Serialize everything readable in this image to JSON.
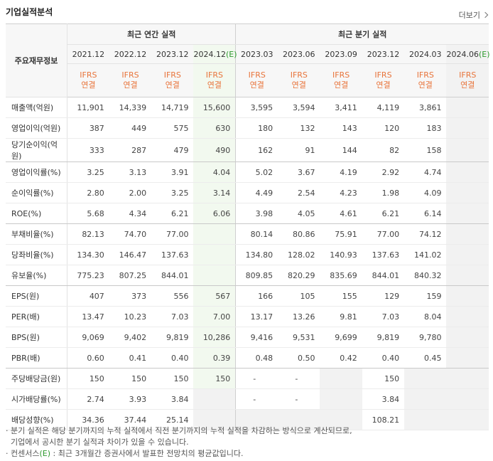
{
  "title": "기업실적분석",
  "more_label": "더보기",
  "header": {
    "row_label": "주요재무정보",
    "annual_group": "최근 연간 실적",
    "quarter_group": "최근 분기 실적",
    "annual_periods": [
      "2021.12",
      "2022.12",
      "2023.12",
      "2024.12"
    ],
    "annual_estimate_suffix": "(E)",
    "quarter_periods": [
      "2023.03",
      "2023.06",
      "2023.09",
      "2023.12",
      "2024.03",
      "2024.06"
    ],
    "quarter_estimate_suffix": "(E)",
    "ifrs": "IFRS",
    "consolidated": "연결"
  },
  "rows": [
    {
      "label": "매출액(억원)",
      "values": [
        "11,901",
        "14,339",
        "14,719",
        "15,600",
        "3,595",
        "3,594",
        "3,411",
        "4,119",
        "3,861",
        ""
      ]
    },
    {
      "label": "영업이익(억원)",
      "values": [
        "387",
        "449",
        "575",
        "630",
        "180",
        "132",
        "143",
        "120",
        "183",
        ""
      ]
    },
    {
      "label": "당기순이익(억원)",
      "values": [
        "333",
        "287",
        "479",
        "490",
        "162",
        "91",
        "144",
        "82",
        "158",
        ""
      ]
    },
    {
      "label": "영업이익률(%)",
      "values": [
        "3.25",
        "3.13",
        "3.91",
        "4.04",
        "5.02",
        "3.67",
        "4.19",
        "2.92",
        "4.74",
        ""
      ]
    },
    {
      "label": "순이익률(%)",
      "values": [
        "2.80",
        "2.00",
        "3.25",
        "3.14",
        "4.49",
        "2.54",
        "4.23",
        "1.98",
        "4.09",
        ""
      ]
    },
    {
      "label": "ROE(%)",
      "values": [
        "5.68",
        "4.34",
        "6.21",
        "6.06",
        "3.98",
        "4.05",
        "4.61",
        "6.21",
        "6.14",
        ""
      ]
    },
    {
      "label": "부채비율(%)",
      "values": [
        "82.13",
        "74.70",
        "77.00",
        "",
        "80.14",
        "80.86",
        "75.91",
        "77.00",
        "74.12",
        ""
      ]
    },
    {
      "label": "당좌비율(%)",
      "values": [
        "134.30",
        "146.47",
        "137.63",
        "",
        "134.80",
        "128.02",
        "140.93",
        "137.63",
        "141.02",
        ""
      ]
    },
    {
      "label": "유보율(%)",
      "values": [
        "775.23",
        "807.25",
        "844.01",
        "",
        "809.85",
        "820.29",
        "835.69",
        "844.01",
        "840.32",
        ""
      ]
    },
    {
      "label": "EPS(원)",
      "values": [
        "407",
        "373",
        "556",
        "567",
        "166",
        "105",
        "155",
        "129",
        "159",
        ""
      ]
    },
    {
      "label": "PER(배)",
      "values": [
        "13.47",
        "10.23",
        "7.03",
        "7.00",
        "13.17",
        "13.26",
        "9.81",
        "7.03",
        "8.04",
        ""
      ]
    },
    {
      "label": "BPS(원)",
      "values": [
        "9,069",
        "9,402",
        "9,819",
        "10,286",
        "9,416",
        "9,531",
        "9,699",
        "9,819",
        "9,780",
        ""
      ]
    },
    {
      "label": "PBR(배)",
      "values": [
        "0.60",
        "0.41",
        "0.40",
        "0.39",
        "0.48",
        "0.50",
        "0.42",
        "0.40",
        "0.45",
        ""
      ]
    },
    {
      "label": "주당배당금(원)",
      "values": [
        "150",
        "150",
        "150",
        "150",
        "-",
        "-",
        "",
        "150",
        "",
        ""
      ]
    },
    {
      "label": "시가배당률(%)",
      "values": [
        "2.74",
        "3.93",
        "3.84",
        "",
        "-",
        "-",
        "",
        "3.84",
        "",
        ""
      ]
    },
    {
      "label": "배당성향(%)",
      "values": [
        "34.36",
        "37.44",
        "25.14",
        "",
        "",
        "",
        "",
        "108.21",
        "",
        ""
      ]
    }
  ],
  "notes": {
    "line1": "분기 실적은 해당 분기까지의 누적 실적에서 직전 분기까지의 누적 실적을 차감하는 방식으로 계산되므로,",
    "line2": "기업에서 공시한 분기 실적과 차이가 있을 수 있습니다.",
    "line3_pre": "컨센서스",
    "line3_e": "(E)",
    "line3_post": ": 최근 3개월간 증권사에서 발표한 전망치의 평균값입니다."
  }
}
